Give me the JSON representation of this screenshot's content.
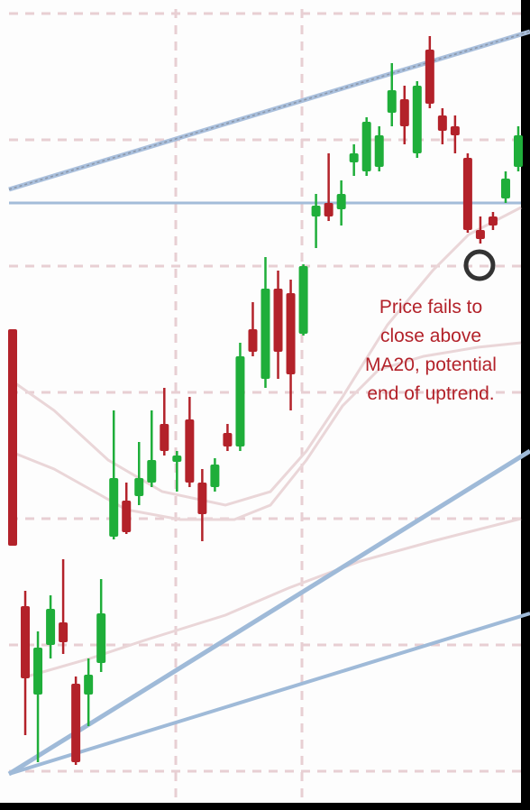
{
  "chart_data": {
    "type": "candlestick",
    "annotation": [
      "Price fails to",
      "close above",
      "MA20, potential",
      "end of uptrend."
    ],
    "up_color": "#1fae3a",
    "down_color": "#b3222a",
    "ylim": [
      0,
      880
    ],
    "open": [
      525,
      218,
      120,
      175,
      200,
      132,
      120,
      155,
      295,
      335,
      340,
      355,
      420,
      378,
      425,
      355,
      350,
      410,
      395,
      525,
      470,
      570,
      565,
      520,
      650,
      665,
      658,
      710,
      700,
      705,
      765,
      780,
      720,
      835,
      762,
      750,
      715,
      635,
      650,
      670,
      705
    ],
    "high": [
      525,
      235,
      190,
      230,
      270,
      140,
      160,
      248,
      435,
      355,
      400,
      435,
      460,
      390,
      450,
      370,
      382,
      420,
      510,
      555,
      605,
      590,
      580,
      597,
      675,
      720,
      690,
      730,
      760,
      750,
      820,
      795,
      800,
      850,
      770,
      762,
      720,
      650,
      655,
      700,
      750
    ],
    "low": [
      285,
      75,
      45,
      160,
      165,
      42,
      85,
      145,
      292,
      298,
      330,
      350,
      385,
      345,
      350,
      290,
      345,
      390,
      390,
      495,
      460,
      470,
      435,
      518,
      615,
      645,
      640,
      695,
      695,
      700,
      750,
      730,
      715,
      770,
      730,
      720,
      632,
      620,
      635,
      665,
      700
    ],
    "close": [
      285,
      138,
      172,
      215,
      178,
      45,
      142,
      210,
      360,
      300,
      360,
      380,
      390,
      385,
      355,
      320,
      375,
      395,
      495,
      500,
      570,
      500,
      475,
      595,
      662,
      650,
      675,
      720,
      755,
      740,
      790,
      750,
      795,
      775,
      745,
      740,
      635,
      625,
      640,
      692,
      740
    ]
  }
}
